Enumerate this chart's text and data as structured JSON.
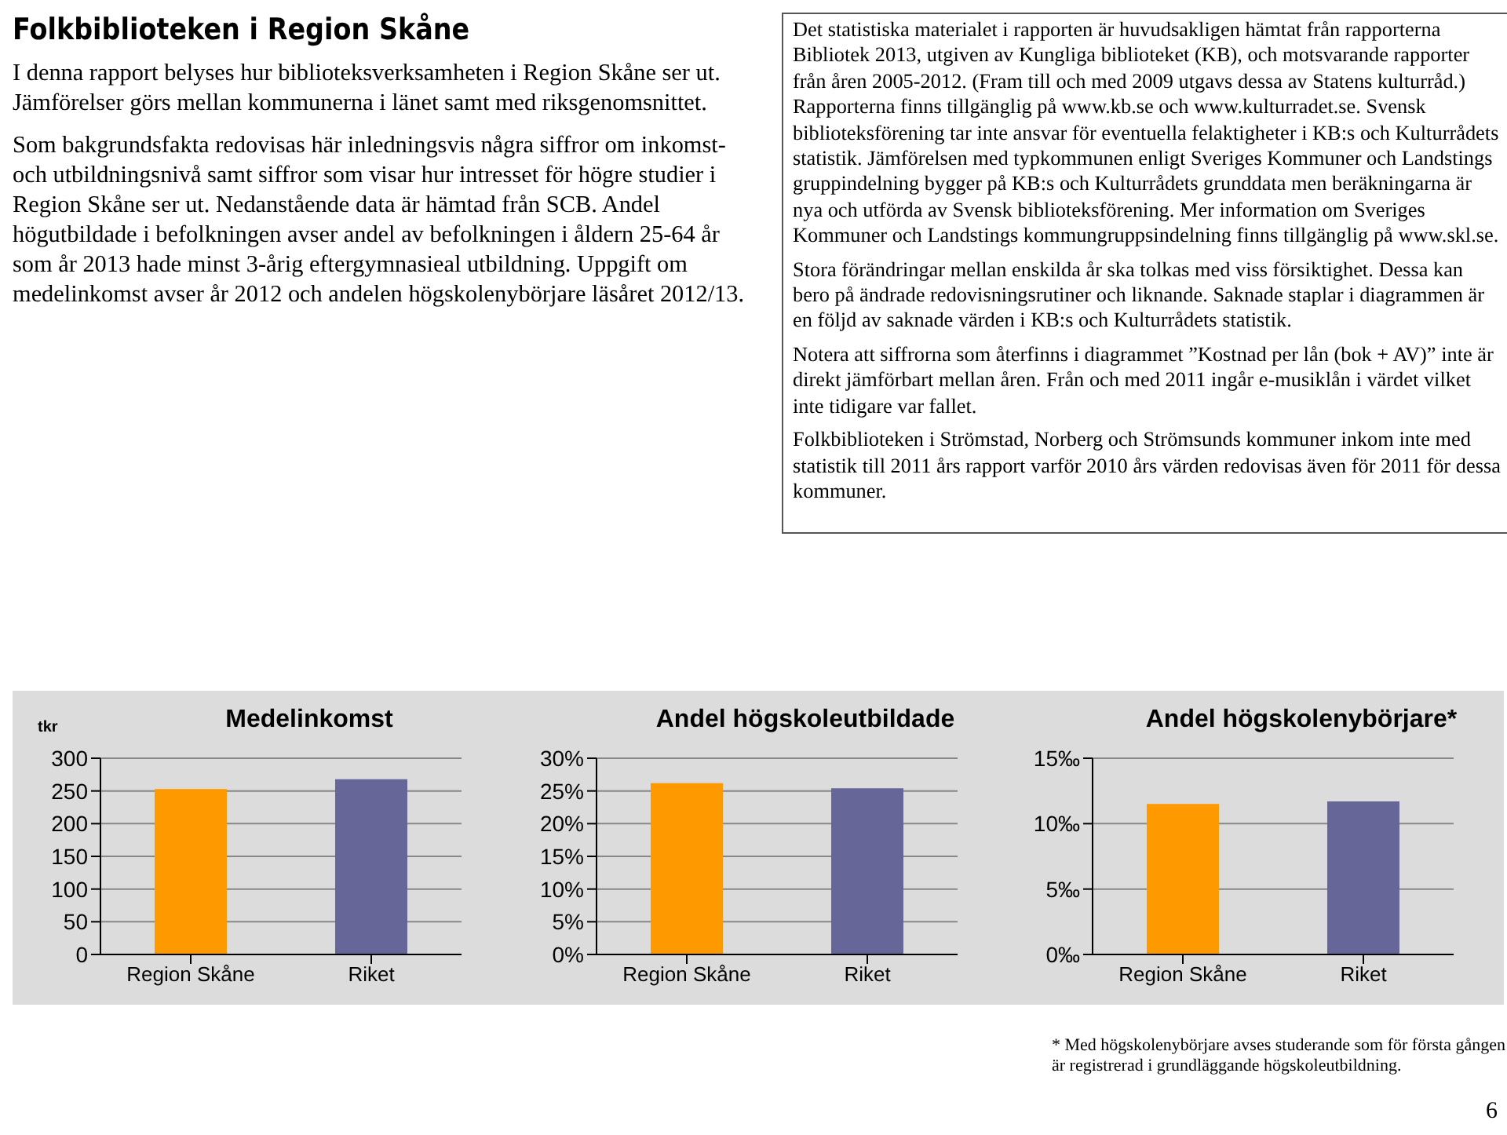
{
  "chart_data": [
    {
      "type": "other",
      "title": "Folkbiblioteken i Region Skåne",
      "annotations": [
        "I denna rapport belyses hur biblioteksverksamheten i Region Skåne ser ut. Jämförelser görs mellan kommunerna i länet samt med riksgenomsnittet.",
        "Som bakgrundsfakta redovisas här inledningsvis några siffror om inkomst- och utbildningsnivå samt siffror som visar hur intresset för högre studier i Region Skåne ser ut. Nedanstående data är hämtad från SCB. Andel högutbildade i befolkningen avser andel av befolkningen i åldern 25-64 år som år 2013 hade minst 3-årig eftergymnasieal utbildning. Uppgift om medelinkomst avser år 2012 och andelen högskolenybörjare läsåret 2012/13."
      ]
    },
    {
      "type": "other",
      "annotations": [
        "Det statistiska materialet i rapporten är huvudsakligen hämtat från rapporterna Bibliotek 2013, utgiven av Kungliga biblioteket (KB), och motsvarande rapporter från åren 2005-2012. (Fram till och med 2009 utgavs dessa av Statens kulturråd.) Rapporterna finns tillgänglig på www.kb.se och www.kulturradet.se. Svensk biblioteksförening tar inte ansvar för eventuella felaktigheter i KB:s och Kulturrådets statistik. Jämförelsen med typkommunen enligt Sveriges Kommuner och Landstings gruppindelning bygger på KB:s och Kulturrådets grunddata men beräkningarna är nya och utförda av Svensk biblioteksförening. Mer information om Sveriges Kommuner och Landstings kommungruppsindelning finns tillgänglig på www.skl.se.",
        "Stora förändringar mellan enskilda år ska tolkas med viss försiktighet. Dessa kan bero på ändrade redovisningsrutiner och liknande. Saknade staplar i diagrammen är en följd av saknade värden i KB:s och Kulturrådets statistik.",
        "Notera att siffrorna som återfinns i diagrammet ”Kostnad per lån (bok + AV)” inte är direkt jämförbart mellan åren. Från och med 2011 ingår e-musiklån i värdet vilket inte tidigare var fallet.",
        "Folkbiblioteken i Strömstad, Norberg och Strömsunds kommuner inkom inte med statistik till 2011 års rapport varför 2010 års värden redovisas även för 2011 för dessa kommuner."
      ]
    },
    {
      "type": "bar",
      "title": "Medelinkomst",
      "ylabel": "tkr",
      "categories": [
        "Region Skåne",
        "Riket"
      ],
      "values": [
        253,
        268
      ],
      "colors": [
        "#ff9900",
        "#666699"
      ],
      "ylim": [
        0,
        300
      ],
      "yticks": [
        0,
        50,
        100,
        150,
        200,
        250,
        300
      ],
      "grid": "y"
    },
    {
      "type": "bar",
      "title": "Andel högskoleutbildade",
      "categories": [
        "Region Skåne",
        "Riket"
      ],
      "values": [
        26.2,
        25.4
      ],
      "colors": [
        "#ff9900",
        "#666699"
      ],
      "ylim": [
        0,
        30
      ],
      "yticks": [
        {
          "value": 0,
          "label": "0%"
        },
        {
          "value": 5,
          "label": "5%"
        },
        {
          "value": 10,
          "label": "10%"
        },
        {
          "value": 15,
          "label": "15%"
        },
        {
          "value": 20,
          "label": "20%"
        },
        {
          "value": 25,
          "label": "25%"
        },
        {
          "value": 30,
          "label": "30%"
        }
      ],
      "grid": "y"
    },
    {
      "type": "bar",
      "title": "Andel högskolenybörjare*",
      "categories": [
        "Region Skåne",
        "Riket"
      ],
      "values": [
        11.5,
        11.7
      ],
      "colors": [
        "#ff9900",
        "#666699"
      ],
      "ylim": [
        0,
        15
      ],
      "yticks": [
        {
          "value": 0,
          "label": "0‰"
        },
        {
          "value": 5,
          "label": "5‰"
        },
        {
          "value": 10,
          "label": "10‰"
        },
        {
          "value": 15,
          "label": "15‰"
        }
      ],
      "grid": "y",
      "annotations": [
        "* Med högskolenybörjare avses studerande som för första gången är registrerad i grundläggande högskoleutbildning.",
        "6"
      ]
    }
  ]
}
